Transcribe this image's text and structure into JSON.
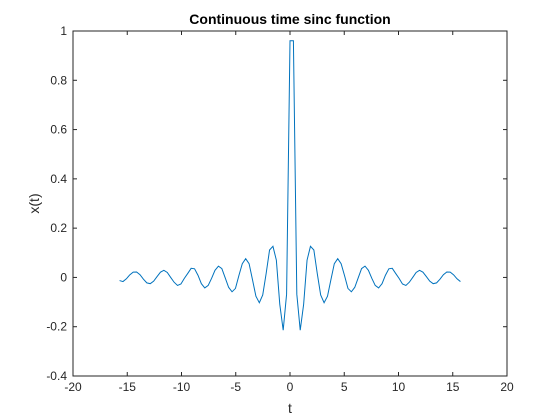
{
  "chart_data": {
    "type": "line",
    "title": "Continuous time sinc function",
    "xlabel": "t",
    "ylabel": "x(t)",
    "xlim": [
      -20,
      20
    ],
    "ylim": [
      -0.4,
      1
    ],
    "xticks": [
      "-20",
      "-15",
      "-10",
      "-5",
      "0",
      "5",
      "10",
      "15",
      "20"
    ],
    "yticks": [
      "-0.4",
      "-0.2",
      "0",
      "0.2",
      "0.4",
      "0.6",
      "0.8",
      "1"
    ],
    "grid": false,
    "line_color": "#0072BD",
    "series": [
      {
        "x": [
          -15.708,
          -15.393,
          -15.079,
          -14.765,
          -14.451,
          -14.137,
          -13.823,
          -13.509,
          -13.195,
          -12.881,
          -12.566,
          -12.252,
          -11.938,
          -11.624,
          -11.31,
          -10.996,
          -10.681,
          -10.367,
          -10.053,
          -9.739,
          -9.425,
          -9.111,
          -8.796,
          -8.482,
          -8.168,
          -7.854,
          -7.54,
          -7.226,
          -6.912,
          -6.597,
          -6.283,
          -5.969,
          -5.655,
          -5.341,
          -5.027,
          -4.712,
          -4.398,
          -4.084,
          -3.77,
          -3.456,
          -3.142,
          -2.827,
          -2.513,
          -2.199,
          -1.885,
          -1.571,
          -1.257,
          -0.942,
          -0.628,
          -0.314,
          0.0,
          0.314,
          0.628,
          0.942,
          1.257,
          1.571,
          1.885,
          2.199,
          2.513,
          2.827,
          3.142,
          3.456,
          3.77,
          4.084,
          4.398,
          4.712,
          5.027,
          5.341,
          5.655,
          5.969,
          6.283,
          6.597,
          6.912,
          7.226,
          7.54,
          7.854,
          8.168,
          8.482,
          8.796,
          9.111,
          9.425,
          9.739,
          10.053,
          10.367,
          10.681,
          10.996,
          11.31,
          11.624,
          11.938,
          12.252,
          12.566,
          12.881,
          13.195,
          13.509,
          13.823,
          14.137,
          14.451,
          14.765,
          15.079,
          15.393,
          15.708
        ],
        "values": [
          -0.0127,
          -0.0168,
          -0.0055,
          0.0106,
          0.0214,
          0.0221,
          0.011,
          -0.0071,
          -0.0221,
          -0.0253,
          -0.0151,
          0.0036,
          0.0213,
          0.0288,
          0.0202,
          -0.0,
          -0.0195,
          -0.0326,
          -0.0267,
          -0.0039,
          0.0163,
          0.037,
          0.0351,
          0.0089,
          -0.0255,
          -0.0426,
          -0.0325,
          -0.0036,
          0.029,
          0.0459,
          0.0358,
          -0.0021,
          -0.0403,
          -0.0583,
          -0.0446,
          0.0073,
          0.0555,
          0.0761,
          0.0558,
          -0.0095,
          -0.0764,
          -0.1028,
          -0.0712,
          0.0157,
          0.1112,
          0.1262,
          0.07,
          -0.109,
          -0.214,
          -0.068,
          0.9604,
          0.9604,
          -0.068,
          -0.214,
          -0.109,
          0.07,
          0.1262,
          0.1112,
          0.0157,
          -0.0712,
          -0.1028,
          -0.0764,
          -0.0095,
          0.0558,
          0.0761,
          0.0555,
          0.0073,
          -0.0446,
          -0.0583,
          -0.0403,
          -0.0021,
          0.0358,
          0.0459,
          0.029,
          -0.0036,
          -0.0325,
          -0.0426,
          -0.0255,
          0.0089,
          0.0351,
          0.037,
          0.0163,
          -0.0039,
          -0.0267,
          -0.0326,
          -0.0195,
          -0.0,
          0.0202,
          0.0288,
          0.0213,
          0.0036,
          -0.0151,
          -0.0253,
          -0.0221,
          -0.0071,
          0.011,
          0.0221,
          0.0214,
          0.0106,
          -0.0055,
          -0.0168
        ]
      }
    ]
  }
}
